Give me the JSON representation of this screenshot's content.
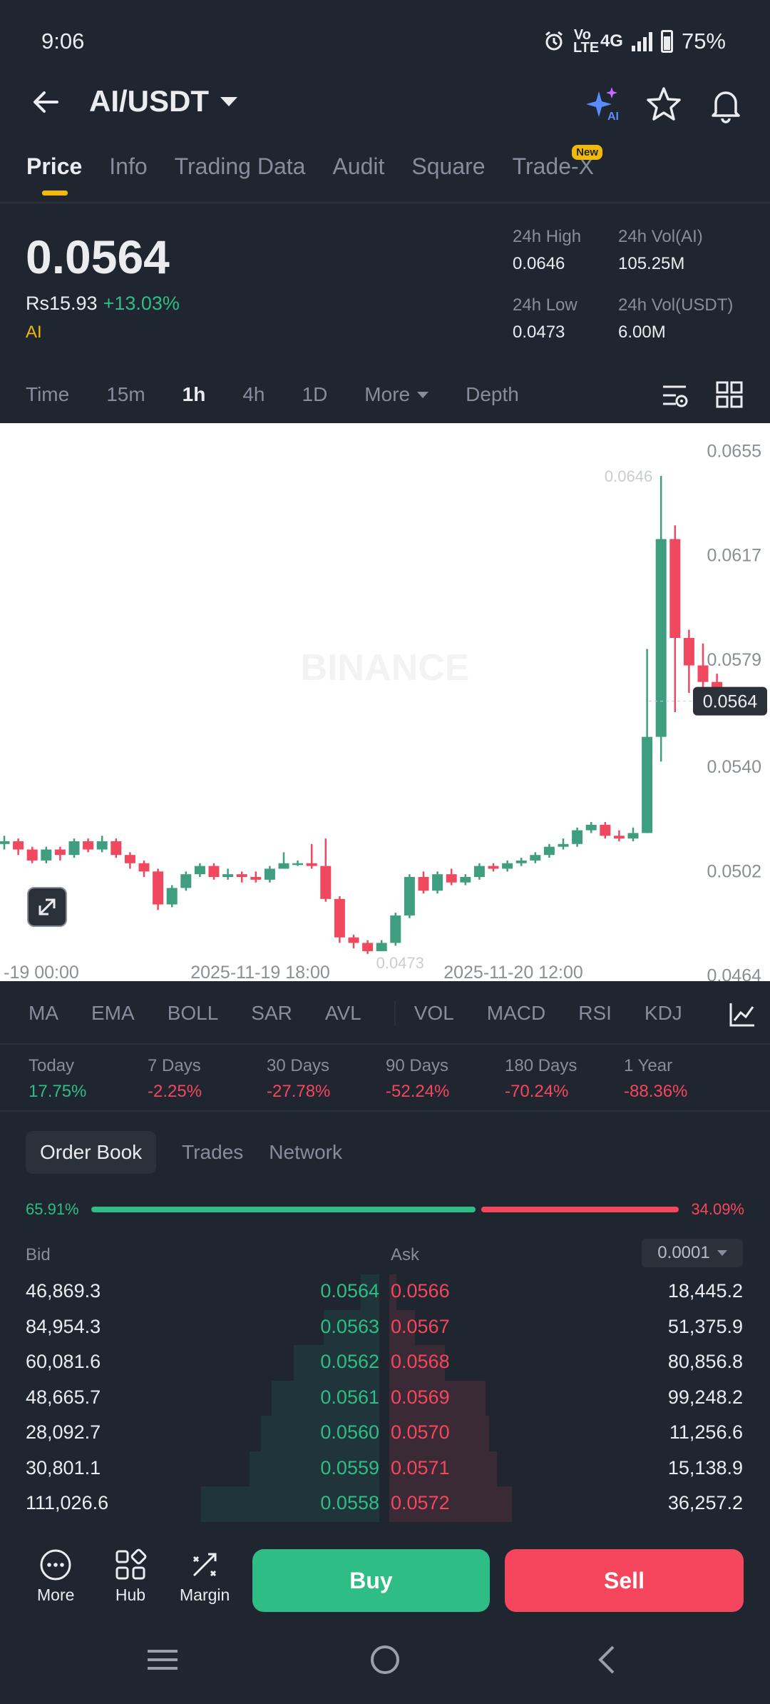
{
  "status": {
    "time": "9:06",
    "network": "4G",
    "volte": "Vo LTE",
    "battery": "75%"
  },
  "header": {
    "pair": "AI/USDT",
    "icons": [
      "ai-sparkle-icon",
      "star-icon",
      "bell-icon"
    ]
  },
  "tabs": [
    {
      "label": "Price",
      "active": true
    },
    {
      "label": "Info"
    },
    {
      "label": "Trading Data"
    },
    {
      "label": "Audit"
    },
    {
      "label": "Square"
    },
    {
      "label": "Trade-X",
      "badge": "New"
    }
  ],
  "price": {
    "last": "0.0564",
    "fiat": "Rs15.93",
    "change": "+13.03%",
    "coin_tag": "AI",
    "high_label": "24h High",
    "high": "0.0646",
    "low_label": "24h Low",
    "low": "0.0473",
    "vol_base_label": "24h Vol(AI)",
    "vol_base": "105.25M",
    "vol_quote_label": "24h Vol(USDT)",
    "vol_quote": "6.00M"
  },
  "timeframes": {
    "time": "Time",
    "m15": "15m",
    "h1": "1h",
    "h4": "4h",
    "d1": "1D",
    "more": "More",
    "depth": "Depth",
    "active": "1h"
  },
  "chart_data": {
    "type": "candlestick",
    "watermark": "BINANCE",
    "y_ticks": [
      "0.0655",
      "0.0617",
      "0.0579",
      "0.0540",
      "0.0502",
      "0.0464"
    ],
    "ylim": [
      0.046,
      0.066
    ],
    "x_ticks": [
      "-19 00:00",
      "2025-11-19 18:00",
      "2025-11-20 12:00"
    ],
    "high_marker": "0.0646",
    "low_marker": "0.0473",
    "last_price_label": "0.0564",
    "candles": [
      [
        0.0512,
        0.0513,
        0.0515,
        0.051
      ],
      [
        0.0513,
        0.051,
        0.0514,
        0.0508
      ],
      [
        0.051,
        0.0506,
        0.0511,
        0.0505
      ],
      [
        0.0506,
        0.051,
        0.0511,
        0.0505
      ],
      [
        0.051,
        0.0508,
        0.0511,
        0.0506
      ],
      [
        0.0508,
        0.0513,
        0.0514,
        0.0507
      ],
      [
        0.0513,
        0.051,
        0.0514,
        0.0509
      ],
      [
        0.051,
        0.0513,
        0.0515,
        0.0509
      ],
      [
        0.0513,
        0.0508,
        0.0514,
        0.0507
      ],
      [
        0.0508,
        0.0505,
        0.0509,
        0.0503
      ],
      [
        0.0505,
        0.0502,
        0.0506,
        0.05
      ],
      [
        0.0502,
        0.049,
        0.0503,
        0.0488
      ],
      [
        0.049,
        0.0496,
        0.0497,
        0.0489
      ],
      [
        0.0496,
        0.0501,
        0.0502,
        0.0495
      ],
      [
        0.0501,
        0.0504,
        0.0505,
        0.05
      ],
      [
        0.0504,
        0.05,
        0.0505,
        0.0499
      ],
      [
        0.05,
        0.0501,
        0.0503,
        0.0499
      ],
      [
        0.0501,
        0.05,
        0.0502,
        0.0498
      ],
      [
        0.05,
        0.0499,
        0.0502,
        0.0498
      ],
      [
        0.0499,
        0.0503,
        0.0504,
        0.0498
      ],
      [
        0.0503,
        0.0505,
        0.0509,
        0.0503
      ],
      [
        0.0505,
        0.0505,
        0.0506,
        0.0504
      ],
      [
        0.0505,
        0.0504,
        0.0512,
        0.0503
      ],
      [
        0.0504,
        0.0492,
        0.0514,
        0.0491
      ],
      [
        0.0492,
        0.0478,
        0.0493,
        0.0476
      ],
      [
        0.0478,
        0.0476,
        0.0479,
        0.0474
      ],
      [
        0.0476,
        0.0473,
        0.0477,
        0.0472
      ],
      [
        0.0473,
        0.0476,
        0.0477,
        0.0473
      ],
      [
        0.0476,
        0.0486,
        0.0487,
        0.0475
      ],
      [
        0.0486,
        0.05,
        0.0501,
        0.0485
      ],
      [
        0.05,
        0.0495,
        0.0502,
        0.0494
      ],
      [
        0.0495,
        0.0501,
        0.0502,
        0.0494
      ],
      [
        0.0501,
        0.0498,
        0.0503,
        0.0497
      ],
      [
        0.0498,
        0.05,
        0.0501,
        0.0497
      ],
      [
        0.05,
        0.0504,
        0.0505,
        0.0499
      ],
      [
        0.0504,
        0.0503,
        0.0505,
        0.0502
      ],
      [
        0.0503,
        0.0505,
        0.0506,
        0.0502
      ],
      [
        0.0505,
        0.0506,
        0.0507,
        0.0504
      ],
      [
        0.0506,
        0.0508,
        0.0509,
        0.0505
      ],
      [
        0.0508,
        0.0511,
        0.0512,
        0.0507
      ],
      [
        0.0511,
        0.0512,
        0.0514,
        0.051
      ],
      [
        0.0512,
        0.0517,
        0.0518,
        0.0511
      ],
      [
        0.0517,
        0.0519,
        0.052,
        0.0516
      ],
      [
        0.0519,
        0.0515,
        0.052,
        0.0514
      ],
      [
        0.0515,
        0.0514,
        0.0517,
        0.0513
      ],
      [
        0.0514,
        0.0516,
        0.0518,
        0.0513
      ],
      [
        0.0516,
        0.0551,
        0.0583,
        0.0516
      ],
      [
        0.0551,
        0.0623,
        0.0646,
        0.0542
      ],
      [
        0.0623,
        0.0587,
        0.0628,
        0.056
      ],
      [
        0.0587,
        0.0577,
        0.059,
        0.0567
      ],
      [
        0.0577,
        0.0571,
        0.0585,
        0.0562
      ],
      [
        0.0571,
        0.0564,
        0.0574,
        0.0563
      ]
    ]
  },
  "indicators": [
    "MA",
    "EMA",
    "BOLL",
    "SAR",
    "AVL",
    "VOL",
    "MACD",
    "RSI",
    "KDJ"
  ],
  "performance": [
    {
      "label": "Today",
      "value": "17.75%",
      "dir": "up"
    },
    {
      "label": "7 Days",
      "value": "-2.25%",
      "dir": "down"
    },
    {
      "label": "30 Days",
      "value": "-27.78%",
      "dir": "down"
    },
    {
      "label": "90 Days",
      "value": "-52.24%",
      "dir": "down"
    },
    {
      "label": "180 Days",
      "value": "-70.24%",
      "dir": "down"
    },
    {
      "label": "1 Year",
      "value": "-88.36%",
      "dir": "down"
    }
  ],
  "orderbook": {
    "tabs": [
      "Order Book",
      "Trades",
      "Network"
    ],
    "bid_ratio_label": "65.91%",
    "ask_ratio_label": "34.09%",
    "bid_ratio": 0.6591,
    "bid_header": "Bid",
    "ask_header": "Ask",
    "precision": "0.0001",
    "rows": [
      {
        "bid_qty": "46,869.3",
        "bid_price": "0.0564",
        "ask_price": "0.0566",
        "ask_qty": "18,445.2",
        "bid_depth": 0.05,
        "ask_depth": 0.02
      },
      {
        "bid_qty": "84,954.3",
        "bid_price": "0.0563",
        "ask_price": "0.0567",
        "ask_qty": "51,375.9",
        "bid_depth": 0.15,
        "ask_depth": 0.07
      },
      {
        "bid_qty": "60,081.6",
        "bid_price": "0.0562",
        "ask_price": "0.0568",
        "ask_qty": "80,856.8",
        "bid_depth": 0.23,
        "ask_depth": 0.15
      },
      {
        "bid_qty": "48,665.7",
        "bid_price": "0.0561",
        "ask_price": "0.0569",
        "ask_qty": "99,248.2",
        "bid_depth": 0.29,
        "ask_depth": 0.26
      },
      {
        "bid_qty": "28,092.7",
        "bid_price": "0.0560",
        "ask_price": "0.0570",
        "ask_qty": "11,256.6",
        "bid_depth": 0.32,
        "ask_depth": 0.27
      },
      {
        "bid_qty": "30,801.1",
        "bid_price": "0.0559",
        "ask_price": "0.0571",
        "ask_qty": "15,138.9",
        "bid_depth": 0.35,
        "ask_depth": 0.29
      },
      {
        "bid_qty": "111,026.6",
        "bid_price": "0.0558",
        "ask_price": "0.0572",
        "ask_qty": "36,257.2",
        "bid_depth": 0.48,
        "ask_depth": 0.33
      }
    ]
  },
  "bottom": {
    "more": "More",
    "hub": "Hub",
    "margin": "Margin",
    "buy": "Buy",
    "sell": "Sell"
  },
  "colors": {
    "bg": "#1f2630",
    "up": "#2ebd85",
    "down": "#f6465d",
    "accent": "#f0b90b",
    "chart_up": "#3f9e80",
    "chart_down": "#f0485f"
  }
}
